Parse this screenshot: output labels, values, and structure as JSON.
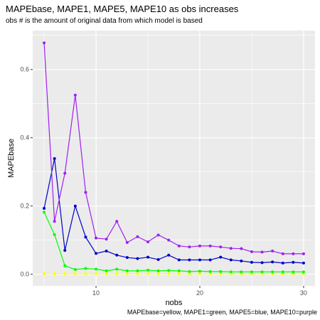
{
  "chart_data": {
    "type": "line",
    "title": "MAPEbase, MAPE1, MAPE5, MAPE10 as obs increases",
    "subtitle": "obs # is the amount of original data from which model is based",
    "caption": "MAPEbase=yellow,  MAPE1=green,  MAPE5=blue,  MAPE10=purple",
    "xlabel": "nobs",
    "ylabel": "MAPEbase",
    "xlim": [
      3.9,
      31.1
    ],
    "ylim": [
      -0.034,
      0.714
    ],
    "x_ticks": [
      10,
      20,
      30
    ],
    "y_ticks": [
      0.0,
      0.2,
      0.4,
      0.6
    ],
    "x_tick_labels": [
      "10",
      "20",
      "30"
    ],
    "y_tick_labels": [
      "0.0",
      "0.2",
      "0.4",
      "0.6"
    ],
    "grid": true,
    "background": "#ebebeb",
    "x": [
      5,
      6,
      7,
      8,
      9,
      10,
      11,
      12,
      13,
      14,
      15,
      16,
      17,
      18,
      19,
      20,
      21,
      22,
      23,
      24,
      25,
      26,
      27,
      28,
      29,
      30
    ],
    "series": [
      {
        "color": "#ffff00",
        "values": [
          0.002,
          0.002,
          0.002,
          0.002,
          0.002,
          0.002,
          0.002,
          0.002,
          0.002,
          0.002,
          0.002,
          0.002,
          0.002,
          0.002,
          0.002,
          0.002,
          0.002,
          0.002,
          0.002,
          0.002,
          0.002,
          0.002,
          0.002,
          0.002,
          0.002,
          0.002
        ]
      },
      {
        "color": "#00ff00",
        "values": [
          0.182,
          0.116,
          0.025,
          0.014,
          0.017,
          0.015,
          0.01,
          0.015,
          0.01,
          0.01,
          0.012,
          0.01,
          0.011,
          0.01,
          0.008,
          0.009,
          0.008,
          0.008,
          0.007,
          0.007,
          0.007,
          0.007,
          0.007,
          0.007,
          0.007,
          0.007
        ]
      },
      {
        "color": "#0000cd",
        "values": [
          0.193,
          0.339,
          0.07,
          0.2,
          0.109,
          0.061,
          0.068,
          0.056,
          0.049,
          0.046,
          0.05,
          0.043,
          0.056,
          0.042,
          0.042,
          0.042,
          0.042,
          0.05,
          0.042,
          0.039,
          0.035,
          0.034,
          0.036,
          0.033,
          0.035,
          0.033
        ]
      },
      {
        "color": "#a020f0",
        "values": [
          0.678,
          0.155,
          0.296,
          0.525,
          0.24,
          0.106,
          0.103,
          0.155,
          0.093,
          0.11,
          0.095,
          0.115,
          0.1,
          0.083,
          0.08,
          0.083,
          0.083,
          0.08,
          0.076,
          0.075,
          0.066,
          0.065,
          0.068,
          0.06,
          0.06,
          0.06
        ]
      }
    ]
  }
}
